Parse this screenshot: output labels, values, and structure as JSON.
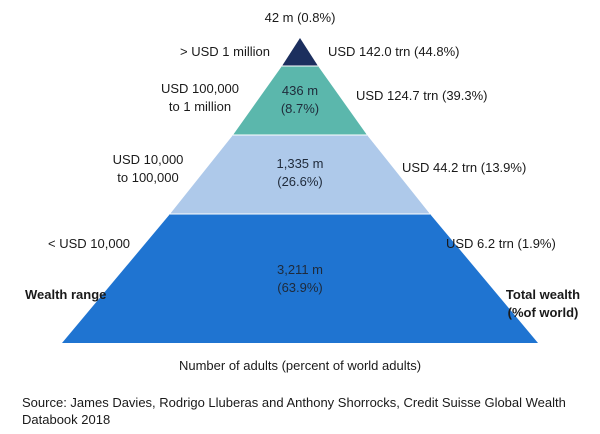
{
  "top_label": "42 m (0.8%)",
  "tiers": [
    {
      "range_line1": "> USD 1 million",
      "range_line2": "",
      "count_line1": "",
      "count_line2": "",
      "wealth": "USD 142.0 trn (44.8%)",
      "color": "#1c2f5e"
    },
    {
      "range_line1": "USD 100,000",
      "range_line2": "to 1 million",
      "count_line1": "436 m",
      "count_line2": "(8.7%)",
      "wealth": "USD 124.7 trn (39.3%)",
      "color": "#5bb7ac"
    },
    {
      "range_line1": "USD 10,000",
      "range_line2": "to 100,000",
      "count_line1": "1,335 m",
      "count_line2": "(26.6%)",
      "wealth": "USD 44.2 trn (13.9%)",
      "color": "#aec9ea"
    },
    {
      "range_line1": "< USD 10,000",
      "range_line2": "",
      "count_line1": "3,211 m",
      "count_line2": "(63.9%)",
      "wealth": "USD 6.2 trn (1.9%)",
      "color": "#1f74d1"
    }
  ],
  "left_title": "Wealth range",
  "right_title_line1": "Total wealth",
  "right_title_line2": "(%of world)",
  "bottom_caption": "Number of adults (percent of world adults)",
  "source_line1": "Source: James Davies, Rodrigo Lluberas and Anthony Shorrocks, Credit Suisse Global Wealth",
  "source_line2": "Databook 2018"
}
